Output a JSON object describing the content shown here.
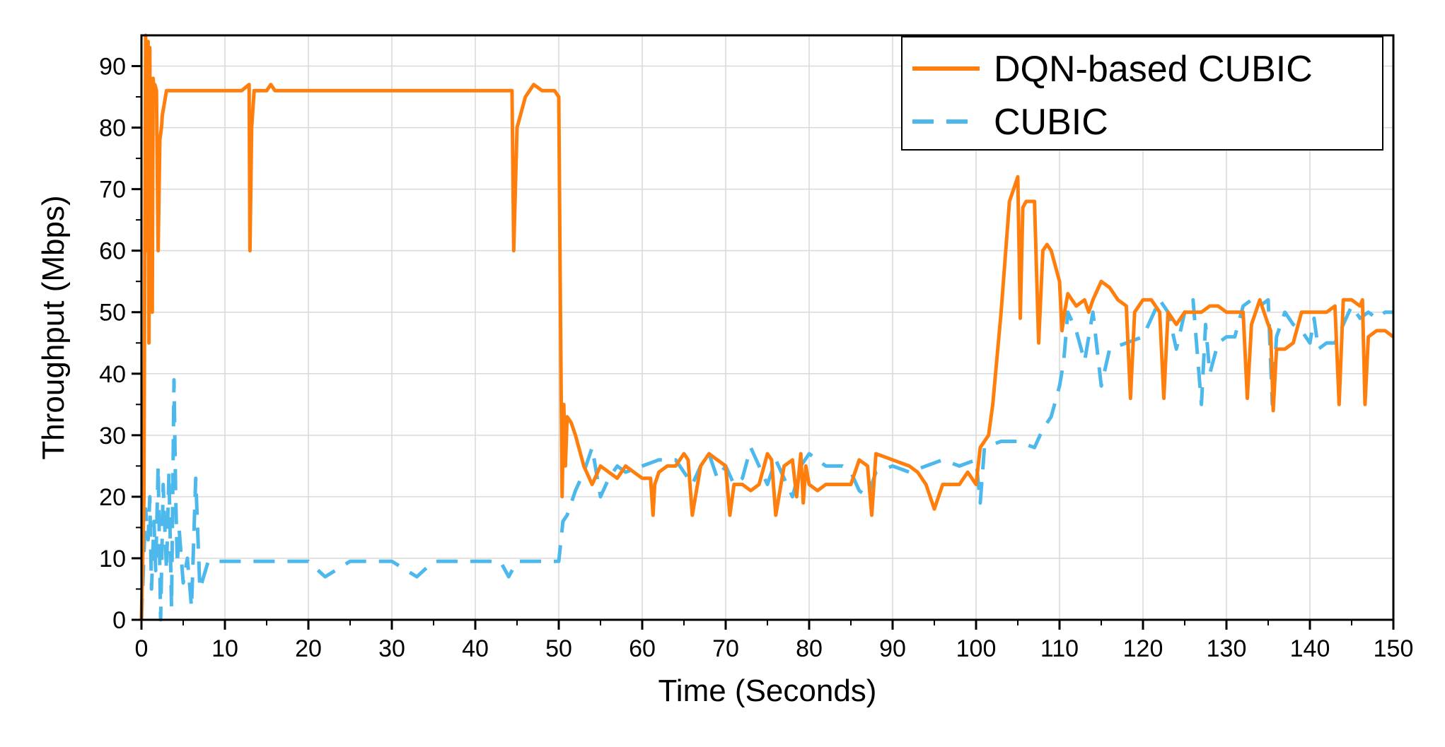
{
  "chart_data": {
    "type": "line",
    "xlabel": "Time (Seconds)",
    "ylabel": "Throughput (Mbps)",
    "xlim": [
      0,
      150
    ],
    "ylim": [
      0,
      95
    ],
    "x_ticks": [
      0,
      10,
      20,
      30,
      40,
      50,
      60,
      70,
      80,
      90,
      100,
      110,
      120,
      130,
      140,
      150
    ],
    "y_ticks": [
      0,
      10,
      20,
      30,
      40,
      50,
      60,
      70,
      80,
      90
    ],
    "grid": true,
    "legend_position": "top-right",
    "series": [
      {
        "name": "DQN-based CUBIC",
        "color": "#ff7f0e",
        "style": "solid",
        "x": [
          0,
          0.3,
          0.5,
          0.7,
          0.8,
          0.9,
          1.0,
          1.1,
          1.2,
          1.3,
          1.4,
          1.5,
          1.6,
          1.8,
          2.0,
          2.2,
          2.4,
          2.5,
          3.0,
          4.0,
          5.0,
          8.0,
          10.0,
          12.0,
          12.9,
          13.0,
          13.2,
          13.5,
          14.0,
          15.0,
          15.5,
          16.0,
          17.0,
          20.0,
          25.0,
          30.0,
          35.0,
          40.0,
          44.0,
          44.4,
          44.6,
          45.0,
          46.0,
          47.0,
          48.0,
          49.0,
          49.5,
          50.0,
          50.2,
          50.4,
          50.6,
          50.8,
          51.0,
          51.5,
          52.0,
          53.0,
          54.0,
          55.0,
          56.0,
          57.0,
          58.0,
          59.0,
          60.0,
          61.0,
          61.3,
          61.5,
          62.0,
          63.0,
          64.0,
          65.0,
          65.5,
          66.0,
          67.0,
          68.0,
          69.0,
          70.0,
          70.5,
          71.0,
          72.0,
          73.0,
          74.0,
          75.0,
          75.5,
          76.0,
          77.0,
          78.0,
          78.5,
          79.0,
          79.3,
          79.6,
          80.0,
          81.0,
          82.0,
          85.0,
          86.0,
          87.0,
          87.5,
          88.0,
          90.0,
          92.0,
          93.0,
          94.0,
          95.0,
          96.0,
          97.0,
          98.0,
          99.0,
          100.0,
          100.5,
          101.0,
          101.5,
          102.0,
          103.0,
          104.0,
          105.0,
          105.3,
          105.6,
          106.0,
          107.0,
          107.5,
          108.0,
          108.5,
          109.0,
          110.0,
          110.3,
          110.6,
          111.0,
          112.0,
          113.0,
          113.5,
          114.0,
          115.0,
          116.0,
          117.0,
          118.0,
          118.5,
          119.0,
          120.0,
          121.0,
          122.0,
          122.5,
          123.0,
          124.0,
          125.0,
          126.0,
          127.0,
          128.0,
          129.0,
          130.0,
          131.0,
          132.0,
          132.5,
          133.0,
          134.0,
          135.0,
          135.3,
          135.6,
          136.0,
          137.0,
          138.0,
          139.0,
          140.0,
          141.0,
          142.0,
          143.0,
          143.5,
          144.0,
          145.0,
          146.0,
          146.3,
          146.6,
          147.0,
          148.0,
          149.0,
          150.0
        ],
        "y": [
          0,
          20,
          95,
          60,
          94,
          45,
          93,
          60,
          87,
          50,
          88,
          86,
          87,
          86,
          60,
          78,
          80,
          82,
          86,
          86,
          86,
          86,
          86,
          86,
          87,
          60,
          80,
          86,
          86,
          86,
          87,
          86,
          86,
          86,
          86,
          86,
          86,
          86,
          86,
          86,
          60,
          80,
          85,
          87,
          86,
          86,
          86,
          85,
          50,
          20,
          35,
          25,
          33,
          32,
          30,
          25,
          22,
          25,
          24,
          23,
          25,
          24,
          23,
          23,
          17,
          22,
          24,
          25,
          25,
          27,
          26,
          17,
          25,
          27,
          26,
          25,
          17,
          22,
          22,
          21,
          22,
          27,
          26,
          17,
          25,
          26,
          20,
          27,
          19,
          25,
          22,
          21,
          22,
          22,
          26,
          25,
          17,
          27,
          26,
          25,
          24,
          22,
          18,
          22,
          22,
          22,
          24,
          22,
          28,
          29,
          30,
          35,
          50,
          68,
          72,
          49,
          67,
          68,
          68,
          45,
          60,
          61,
          60,
          55,
          47,
          50,
          53,
          51,
          52,
          50,
          52,
          55,
          54,
          52,
          51,
          36,
          50,
          52,
          52,
          50,
          36,
          50,
          48,
          50,
          50,
          50,
          51,
          51,
          50,
          50,
          50,
          36,
          48,
          52,
          48,
          47,
          34,
          44,
          44,
          45,
          50,
          50,
          50,
          50,
          51,
          35,
          52,
          52,
          51,
          52,
          35,
          46,
          47,
          47,
          46
        ]
      },
      {
        "name": "CUBIC",
        "color": "#4db8ec",
        "style": "dashed",
        "x": [
          0,
          0.5,
          0.8,
          1.0,
          1.2,
          1.5,
          1.7,
          2.0,
          2.3,
          2.6,
          3.0,
          3.3,
          3.6,
          3.9,
          4.1,
          4.3,
          4.5,
          5.0,
          5.5,
          6.0,
          6.5,
          7.0,
          8.0,
          10.0,
          15.0,
          20.0,
          22.0,
          25.0,
          30.0,
          33.0,
          35.0,
          40.0,
          43.0,
          44.0,
          45.0,
          49.0,
          50.0,
          50.5,
          51.0,
          52.0,
          53.0,
          54.0,
          55.0,
          56.0,
          57.0,
          58.0,
          60.0,
          62.0,
          64.0,
          65.0,
          66.0,
          67.0,
          68.0,
          69.0,
          70.0,
          71.0,
          72.0,
          73.0,
          74.0,
          75.0,
          76.0,
          77.0,
          78.0,
          79.0,
          80.0,
          81.0,
          82.0,
          84.0,
          85.0,
          86.0,
          87.0,
          88.0,
          90.0,
          92.0,
          94.0,
          96.0,
          98.0,
          100.0,
          100.5,
          101.0,
          103.0,
          105.0,
          107.0,
          108.0,
          109.0,
          110.0,
          110.5,
          111.0,
          112.0,
          113.0,
          114.0,
          115.0,
          116.0,
          118.0,
          120.0,
          122.0,
          123.0,
          124.0,
          125.0,
          126.0,
          127.0,
          127.5,
          128.0,
          129.0,
          130.0,
          131.0,
          132.0,
          133.0,
          134.0,
          135.0,
          135.5,
          136.0,
          137.0,
          138.0,
          139.0,
          140.0,
          140.5,
          141.0,
          142.0,
          143.0,
          144.0,
          145.0,
          146.0,
          147.0,
          148.0,
          149.0,
          150.0
        ],
        "y": [
          0,
          18,
          13,
          20,
          5,
          16,
          8,
          25,
          0,
          22,
          8,
          24,
          2,
          39,
          20,
          9,
          15,
          6,
          10,
          2,
          23,
          5,
          9.5,
          9.5,
          9.5,
          9.5,
          7,
          9.5,
          9.5,
          7,
          9.5,
          9.5,
          9.5,
          7,
          9.5,
          9.5,
          9.5,
          16,
          17,
          21,
          24,
          28,
          20,
          23,
          25,
          24,
          25,
          26,
          26,
          24,
          22,
          25,
          27,
          23,
          25,
          22,
          23,
          28,
          25,
          22,
          26,
          23,
          20,
          25,
          27,
          26,
          25,
          25,
          24,
          21,
          20,
          24,
          25,
          24,
          25,
          26,
          25,
          26,
          19,
          28,
          29,
          29,
          28,
          31,
          33,
          38,
          42,
          50,
          47,
          42,
          50,
          38,
          44,
          45,
          46,
          52,
          50,
          44,
          50,
          52,
          35,
          48,
          40,
          45,
          46,
          46,
          51,
          52,
          51,
          52,
          35,
          46,
          50,
          48,
          47,
          45,
          49,
          44,
          45,
          45,
          48,
          51,
          49,
          50,
          49,
          50,
          50
        ]
      }
    ]
  }
}
